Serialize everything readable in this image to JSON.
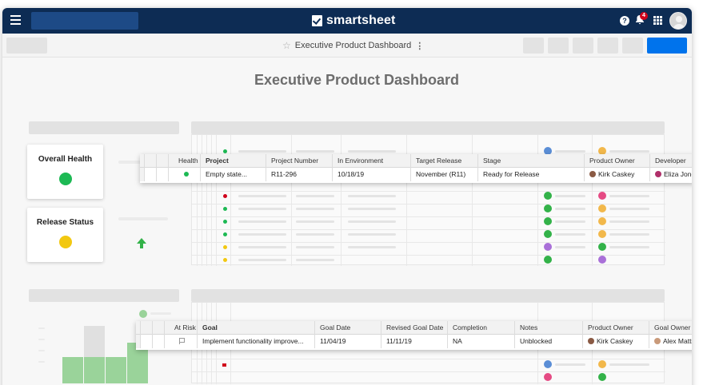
{
  "app": {
    "brand": "smartsheet",
    "notification_count": "4"
  },
  "subbar": {
    "title": "Executive Product Dashboard"
  },
  "dashboard": {
    "title": "Executive Product Dashboard",
    "widgets": [
      {
        "title": "Overall Health",
        "status_color": "#1db954"
      },
      {
        "title": "Release Status",
        "status_color": "#f2c811"
      }
    ]
  },
  "project_sheet": {
    "headers": [
      "Health",
      "Project",
      "Project Number",
      "In Environment",
      "Target Release",
      "Stage",
      "Product Owner",
      "Developer"
    ],
    "row": {
      "health_color": "#1db954",
      "project": "Empty state...",
      "project_number": "R11-296",
      "in_environment": "10/18/19",
      "target_release": "November (R11)",
      "stage": "Ready for Release",
      "product_owner": "Kirk Caskey",
      "developer": "Eliza Jones"
    }
  },
  "goal_sheet": {
    "headers": [
      "At Risk",
      "Goal",
      "Goal Date",
      "Revised Goal Date",
      "Completion",
      "Notes",
      "Product Owner",
      "Goal Owner"
    ],
    "row": {
      "goal": "Implement functionality improve...",
      "goal_date": "11/04/19",
      "revised_goal_date": "11/11/19",
      "completion": "NA",
      "notes": "Unblocked",
      "product_owner": "Kirk Caskey",
      "goal_owner": "Alex Mattson"
    }
  },
  "colors": {
    "topbar": "#0d2c54",
    "primary_button": "#0073ec",
    "green": "#1db954",
    "yellow": "#f2c811",
    "red": "#d0021b"
  }
}
